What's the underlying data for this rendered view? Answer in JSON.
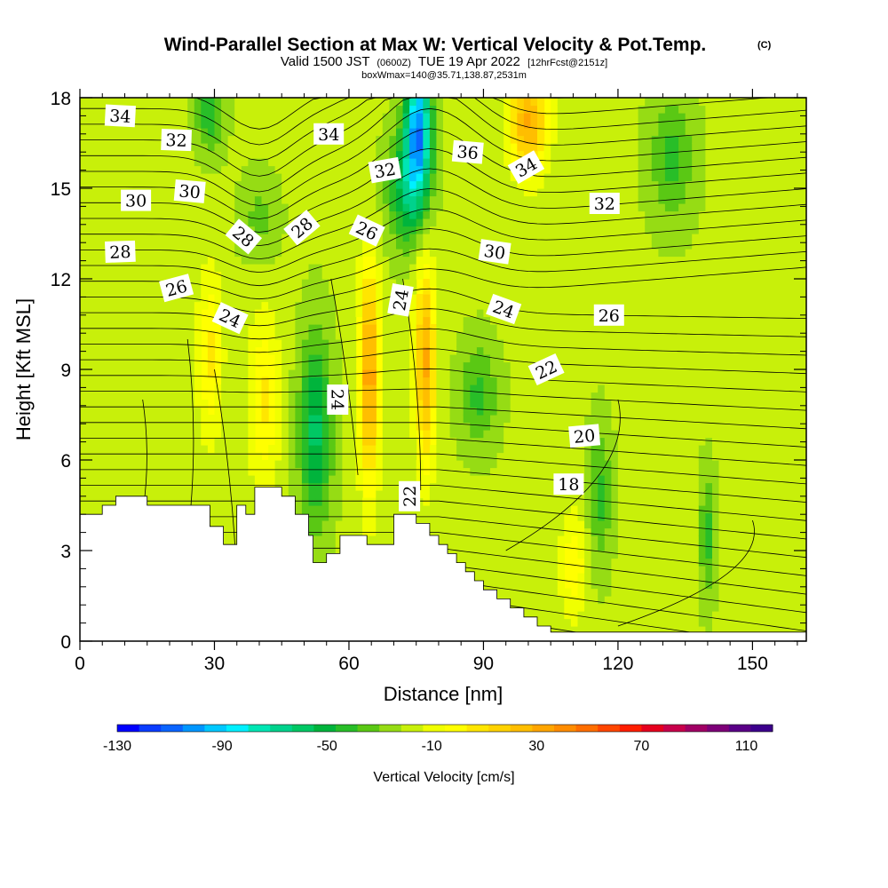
{
  "title": {
    "main": "Wind-Parallel Section at Max W: Vertical Velocity & Pot.Temp.",
    "copyright": "(C)",
    "valid_prefix": "Valid 1500 JST",
    "valid_utc": "(0600Z)",
    "valid_date": "TUE 19 Apr 2022",
    "forecast": "[12hrFcst@2151z]",
    "box": "boxWmax=140@35.71,138.87,2531m"
  },
  "chart_data": {
    "type": "heatmap",
    "xlabel": "Distance [nm]",
    "ylabel": "Height [Kft MSL]",
    "xlim": [
      0,
      162
    ],
    "ylim": [
      0,
      18
    ],
    "xticks": [
      0,
      30,
      60,
      90,
      120,
      150
    ],
    "yticks": [
      0,
      3,
      6,
      9,
      12,
      15,
      18
    ],
    "x_tick_labels": [
      "0",
      "30",
      "60",
      "90",
      "120",
      "150"
    ],
    "y_tick_labels": [
      "0",
      "3",
      "6",
      "9",
      "12",
      "15",
      "18"
    ],
    "colorbar": {
      "title": "Vertical Velocity [cm/s]",
      "min": -130,
      "max": 110,
      "step": 10,
      "labels": [
        "-130",
        "-90",
        "-50",
        "-10",
        "30",
        "70",
        "110"
      ],
      "colors": [
        "#0000ff",
        "#0a3cff",
        "#0a64ff",
        "#0096ff",
        "#00c8ff",
        "#00f0ff",
        "#00e6b4",
        "#00d28c",
        "#00c864",
        "#00b43c",
        "#28be28",
        "#5ac814",
        "#96dc14",
        "#c8f00a",
        "#f0ff00",
        "#ffff00",
        "#ffe600",
        "#ffd200",
        "#ffbe00",
        "#ffa500",
        "#ff8c00",
        "#ff6e00",
        "#ff4600",
        "#ff1e00",
        "#e6001e",
        "#c8004b",
        "#a00064",
        "#7d0078",
        "#5a0087",
        "#3c008c"
      ]
    },
    "terrain_profile": [
      [
        0,
        4.2
      ],
      [
        5,
        4.2
      ],
      [
        5,
        4.5
      ],
      [
        8,
        4.5
      ],
      [
        8,
        4.8
      ],
      [
        15,
        4.8
      ],
      [
        15,
        4.5
      ],
      [
        29,
        4.5
      ],
      [
        29,
        3.8
      ],
      [
        32,
        3.8
      ],
      [
        32,
        3.2
      ],
      [
        35,
        3.2
      ],
      [
        35,
        4.5
      ],
      [
        37,
        4.5
      ],
      [
        37,
        4.2
      ],
      [
        39,
        4.2
      ],
      [
        39,
        5.1
      ],
      [
        45,
        5.1
      ],
      [
        45,
        4.8
      ],
      [
        48,
        4.8
      ],
      [
        48,
        4.2
      ],
      [
        51,
        4.2
      ],
      [
        51,
        3.5
      ],
      [
        52,
        3.5
      ],
      [
        52,
        2.6
      ],
      [
        55,
        2.6
      ],
      [
        55,
        2.9
      ],
      [
        58,
        2.9
      ],
      [
        58,
        3.5
      ],
      [
        64,
        3.5
      ],
      [
        64,
        3.2
      ],
      [
        70,
        3.2
      ],
      [
        70,
        4.2
      ],
      [
        75,
        4.2
      ],
      [
        75,
        3.9
      ],
      [
        78,
        3.9
      ],
      [
        78,
        3.5
      ],
      [
        80,
        3.5
      ],
      [
        80,
        3.2
      ],
      [
        82,
        3.2
      ],
      [
        82,
        2.9
      ],
      [
        84,
        2.9
      ],
      [
        84,
        2.6
      ],
      [
        86,
        2.6
      ],
      [
        86,
        2.3
      ],
      [
        88,
        2.3
      ],
      [
        88,
        2.0
      ],
      [
        90,
        2.0
      ],
      [
        90,
        1.7
      ],
      [
        93,
        1.7
      ],
      [
        93,
        1.4
      ],
      [
        96,
        1.4
      ],
      [
        96,
        1.1
      ],
      [
        99,
        1.1
      ],
      [
        99,
        0.8
      ],
      [
        102,
        0.8
      ],
      [
        102,
        0.5
      ],
      [
        105,
        0.5
      ],
      [
        105,
        0.3
      ],
      [
        162,
        0.3
      ]
    ],
    "updraft_cores": [
      {
        "x": 64.5,
        "y": 8.8,
        "peak": 65,
        "sx": 1.6,
        "sy": 2.6
      },
      {
        "x": 77.0,
        "y": 9.2,
        "peak": 60,
        "sx": 1.6,
        "sy": 2.4
      },
      {
        "x": 100.0,
        "y": 17.2,
        "peak": 60,
        "sx": 3.0,
        "sy": 1.2
      },
      {
        "x": 29.0,
        "y": 9.5,
        "peak": 30,
        "sx": 2.0,
        "sy": 2.0
      },
      {
        "x": 41.0,
        "y": 8.0,
        "peak": 30,
        "sx": 2.5,
        "sy": 2.0
      },
      {
        "x": 110.0,
        "y": 2.5,
        "peak": 28,
        "sx": 2.0,
        "sy": 1.2
      }
    ],
    "downdraft_cores": [
      {
        "x": 52.5,
        "y": 7.0,
        "peak": -45,
        "sx": 2.5,
        "sy": 2.2
      },
      {
        "x": 75.5,
        "y": 17.0,
        "peak": -95,
        "sx": 2.0,
        "sy": 1.5
      },
      {
        "x": 73.0,
        "y": 15.0,
        "peak": -45,
        "sx": 3.0,
        "sy": 1.3
      },
      {
        "x": 89.0,
        "y": 8.2,
        "peak": -25,
        "sx": 3.0,
        "sy": 1.2
      },
      {
        "x": 116.0,
        "y": 4.8,
        "peak": -25,
        "sx": 1.8,
        "sy": 1.6
      },
      {
        "x": 140.0,
        "y": 3.5,
        "peak": -25,
        "sx": 1.2,
        "sy": 1.5
      },
      {
        "x": 29.0,
        "y": 17.5,
        "peak": -30,
        "sx": 2.2,
        "sy": 0.9
      },
      {
        "x": 132.0,
        "y": 16.0,
        "peak": -25,
        "sx": 3.5,
        "sy": 1.5
      },
      {
        "x": 40.0,
        "y": 14.0,
        "peak": -15,
        "sx": 3.0,
        "sy": 1.0
      }
    ],
    "theta_labels": [
      {
        "text": "34",
        "x": 9,
        "y": 17.4,
        "angle": 3
      },
      {
        "text": "32",
        "x": 21.5,
        "y": 16.6,
        "angle": 2
      },
      {
        "text": "30",
        "x": 12.5,
        "y": 14.6,
        "angle": 0
      },
      {
        "text": "30",
        "x": 24.5,
        "y": 14.9,
        "angle": 5
      },
      {
        "text": "28",
        "x": 9,
        "y": 12.9,
        "angle": -2
      },
      {
        "text": "26",
        "x": 21.5,
        "y": 11.7,
        "angle": -15
      },
      {
        "text": "24",
        "x": 33.5,
        "y": 10.7,
        "angle": 25
      },
      {
        "text": "28",
        "x": 36.5,
        "y": 13.4,
        "angle": 40
      },
      {
        "text": "28",
        "x": 49.5,
        "y": 13.7,
        "angle": -40
      },
      {
        "text": "34",
        "x": 55.5,
        "y": 16.8,
        "angle": 0
      },
      {
        "text": "32",
        "x": 68,
        "y": 15.6,
        "angle": -10
      },
      {
        "text": "26",
        "x": 64,
        "y": 13.6,
        "angle": 25
      },
      {
        "text": "24",
        "x": 71.5,
        "y": 11.3,
        "angle": -80
      },
      {
        "text": "24",
        "x": 57.5,
        "y": 8.0,
        "angle": 90
      },
      {
        "text": "22",
        "x": 73.5,
        "y": 4.8,
        "angle": -90
      },
      {
        "text": "36",
        "x": 86.5,
        "y": 16.2,
        "angle": 5
      },
      {
        "text": "34",
        "x": 99.5,
        "y": 15.7,
        "angle": -30
      },
      {
        "text": "32",
        "x": 117,
        "y": 14.5,
        "angle": 0
      },
      {
        "text": "30",
        "x": 92.5,
        "y": 12.9,
        "angle": 8
      },
      {
        "text": "24",
        "x": 94.5,
        "y": 11.0,
        "angle": 20
      },
      {
        "text": "26",
        "x": 118,
        "y": 10.8,
        "angle": 0
      },
      {
        "text": "22",
        "x": 104,
        "y": 9.0,
        "angle": -25
      },
      {
        "text": "20",
        "x": 112.5,
        "y": 6.8,
        "angle": -5
      },
      {
        "text": "18",
        "x": 109,
        "y": 5.2,
        "angle": 0
      }
    ]
  }
}
